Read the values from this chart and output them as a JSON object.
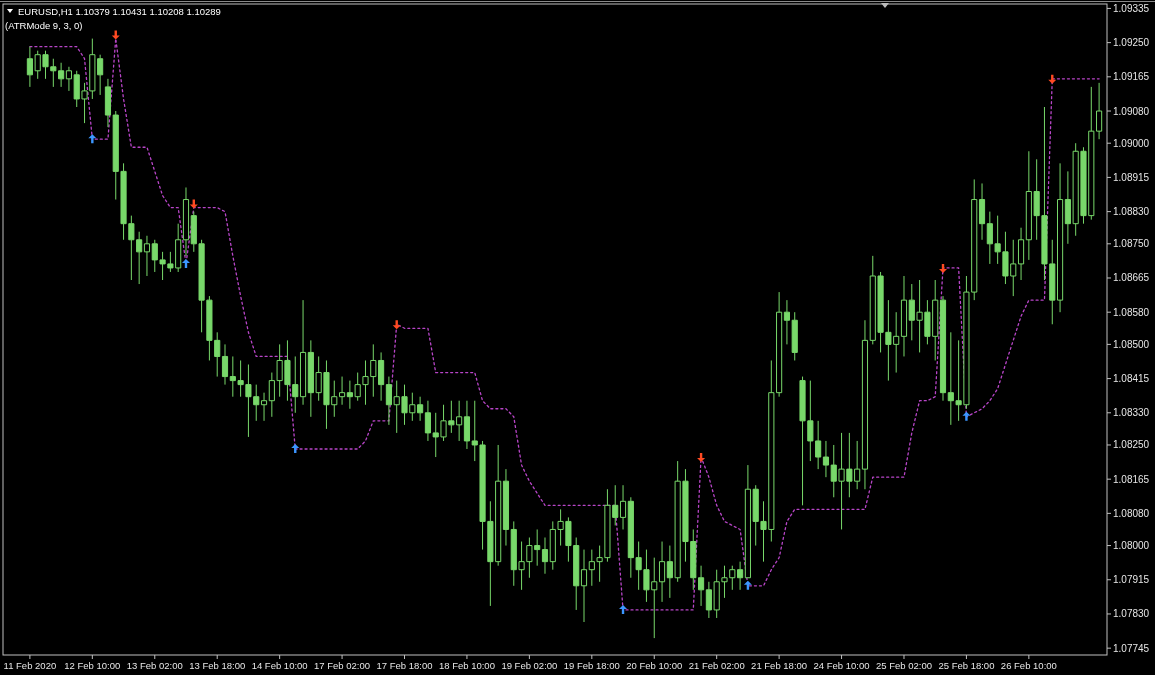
{
  "chart_data": {
    "type": "candlestick",
    "title": "EURUSD,H1 1.10379 1.10431 1.10208 1.10289",
    "subtitle": "(ATRMode 9, 3, 0)",
    "color": "#78d86a",
    "categories": [
      "11 Feb 2020",
      null,
      null,
      null,
      null,
      null,
      null,
      null,
      "12 Feb 10:00",
      null,
      null,
      null,
      null,
      null,
      null,
      null,
      "13 Feb 02:00",
      null,
      null,
      null,
      null,
      null,
      null,
      null,
      "13 Feb 18:00",
      null,
      null,
      null,
      null,
      null,
      null,
      null,
      "14 Feb 10:00",
      null,
      null,
      null,
      null,
      null,
      null,
      null,
      "17 Feb 02:00",
      null,
      null,
      null,
      null,
      null,
      null,
      null,
      "17 Feb 18:00",
      null,
      null,
      null,
      null,
      null,
      null,
      null,
      "18 Feb 10:00",
      null,
      null,
      null,
      null,
      null,
      null,
      null,
      "19 Feb 02:00",
      null,
      null,
      null,
      null,
      null,
      null,
      null,
      "19 Feb 18:00",
      null,
      null,
      null,
      null,
      null,
      null,
      null,
      "20 Feb 10:00",
      null,
      null,
      null,
      null,
      null,
      null,
      null,
      "21 Feb 02:00",
      null,
      null,
      null,
      null,
      null,
      null,
      null,
      "21 Feb 18:00",
      null,
      null,
      null,
      null,
      null,
      null,
      null,
      "24 Feb 10:00",
      null,
      null,
      null,
      null,
      null,
      null,
      null,
      "25 Feb 02:00",
      null,
      null,
      null,
      null,
      null,
      null,
      null,
      "25 Feb 18:00",
      null,
      null,
      null,
      null,
      null,
      null,
      null,
      "26 Feb 10:00",
      null,
      null,
      null,
      null,
      null,
      null,
      null,
      null,
      null
    ],
    "ohlc": [
      [
        1.0921,
        1.0924,
        1.0914,
        1.0917
      ],
      [
        1.0918,
        1.0923,
        1.0916,
        1.0922
      ],
      [
        1.0922,
        1.0923,
        1.0916,
        1.0919
      ],
      [
        1.0919,
        1.0921,
        1.0914,
        1.0918
      ],
      [
        1.0918,
        1.092,
        1.0914,
        1.0916
      ],
      [
        1.0916,
        1.0919,
        1.0913,
        1.0918
      ],
      [
        1.0917,
        1.0918,
        1.0909,
        1.0911
      ],
      [
        1.0911,
        1.0915,
        1.0905,
        1.0913
      ],
      [
        1.0913,
        1.0926,
        1.0911,
        1.0922
      ],
      [
        1.0921,
        1.0922,
        1.0912,
        1.0917
      ],
      [
        1.0914,
        1.0916,
        1.0904,
        1.0907
      ],
      [
        1.0907,
        1.0908,
        1.0886,
        1.0893
      ],
      [
        1.0893,
        1.0895,
        1.0876,
        1.088
      ],
      [
        1.088,
        1.0882,
        1.0866,
        1.0876
      ],
      [
        1.0876,
        1.0878,
        1.0865,
        1.0873
      ],
      [
        1.0873,
        1.0877,
        1.0867,
        1.0875
      ],
      [
        1.0875,
        1.0876,
        1.0868,
        1.0871
      ],
      [
        1.0871,
        1.0873,
        1.0866,
        1.087
      ],
      [
        1.087,
        1.0873,
        1.0868,
        1.0869
      ],
      [
        1.0869,
        1.088,
        1.0868,
        1.0876
      ],
      [
        1.0876,
        1.0889,
        1.0872,
        1.0886
      ],
      [
        1.0882,
        1.0883,
        1.0873,
        1.0875
      ],
      [
        1.0875,
        1.0876,
        1.0853,
        1.0861
      ],
      [
        1.0861,
        1.0862,
        1.0846,
        1.0851
      ],
      [
        1.0851,
        1.0853,
        1.0842,
        1.0847
      ],
      [
        1.0847,
        1.085,
        1.084,
        1.0842
      ],
      [
        1.0842,
        1.0847,
        1.0837,
        1.0841
      ],
      [
        1.0841,
        1.0846,
        1.0837,
        1.084
      ],
      [
        1.084,
        1.0845,
        1.0827,
        1.0837
      ],
      [
        1.0837,
        1.084,
        1.0831,
        1.0835
      ],
      [
        1.0835,
        1.0838,
        1.0831,
        1.0836
      ],
      [
        1.0836,
        1.0843,
        1.0832,
        1.0841
      ],
      [
        1.0841,
        1.085,
        1.0837,
        1.0846
      ],
      [
        1.0846,
        1.0851,
        1.0836,
        1.084
      ],
      [
        1.084,
        1.0847,
        1.0833,
        1.0837
      ],
      [
        1.0837,
        1.0861,
        1.0835,
        1.0848
      ],
      [
        1.0848,
        1.0851,
        1.0832,
        1.0838
      ],
      [
        1.0838,
        1.0847,
        1.0836,
        1.0843
      ],
      [
        1.0843,
        1.0846,
        1.0829,
        1.0835
      ],
      [
        1.0835,
        1.0841,
        1.0832,
        1.0837
      ],
      [
        1.0837,
        1.0842,
        1.0835,
        1.0838
      ],
      [
        1.0838,
        1.0841,
        1.0834,
        1.0837
      ],
      [
        1.0837,
        1.0843,
        1.0836,
        1.084
      ],
      [
        1.084,
        1.0846,
        1.0835,
        1.0842
      ],
      [
        1.0842,
        1.085,
        1.0837,
        1.0846
      ],
      [
        1.0846,
        1.0848,
        1.0836,
        1.084
      ],
      [
        1.084,
        1.0842,
        1.083,
        1.0835
      ],
      [
        1.0835,
        1.0841,
        1.0828,
        1.0837
      ],
      [
        1.0837,
        1.084,
        1.083,
        1.0833
      ],
      [
        1.0833,
        1.0838,
        1.0831,
        1.0835
      ],
      [
        1.0835,
        1.0837,
        1.0831,
        1.0833
      ],
      [
        1.0833,
        1.0836,
        1.0826,
        1.0828
      ],
      [
        1.0828,
        1.0833,
        1.0822,
        1.0827
      ],
      [
        1.0827,
        1.0835,
        1.0826,
        1.0831
      ],
      [
        1.0831,
        1.0836,
        1.0828,
        1.083
      ],
      [
        1.083,
        1.0836,
        1.0826,
        1.0832
      ],
      [
        1.0832,
        1.0836,
        1.0824,
        1.0826
      ],
      [
        1.0826,
        1.0836,
        1.0821,
        1.0825
      ],
      [
        1.0825,
        1.0826,
        1.0799,
        1.0806
      ],
      [
        1.0806,
        1.0811,
        1.0785,
        1.0796
      ],
      [
        1.0796,
        1.0825,
        1.0795,
        1.0816
      ],
      [
        1.0816,
        1.0819,
        1.08,
        1.0804
      ],
      [
        1.0804,
        1.0806,
        1.079,
        1.0794
      ],
      [
        1.0794,
        1.0801,
        1.0789,
        1.0796
      ],
      [
        1.0796,
        1.0802,
        1.0792,
        1.08
      ],
      [
        1.08,
        1.0804,
        1.0795,
        1.0799
      ],
      [
        1.0799,
        1.0802,
        1.0793,
        1.0796
      ],
      [
        1.0796,
        1.0806,
        1.0794,
        1.0804
      ],
      [
        1.0804,
        1.0809,
        1.08,
        1.0806
      ],
      [
        1.0806,
        1.0807,
        1.0796,
        1.08
      ],
      [
        1.08,
        1.0802,
        1.0784,
        1.079
      ],
      [
        1.079,
        1.0799,
        1.0781,
        1.0794
      ],
      [
        1.0794,
        1.0799,
        1.079,
        1.0796
      ],
      [
        1.0796,
        1.08,
        1.0791,
        1.0797
      ],
      [
        1.0797,
        1.0814,
        1.0796,
        1.081
      ],
      [
        1.081,
        1.0815,
        1.0805,
        1.0807
      ],
      [
        1.0807,
        1.0815,
        1.0804,
        1.0811
      ],
      [
        1.0811,
        1.0812,
        1.0792,
        1.0797
      ],
      [
        1.0797,
        1.0801,
        1.0789,
        1.0794
      ],
      [
        1.0794,
        1.0799,
        1.0786,
        1.0789
      ],
      [
        1.0789,
        1.0797,
        1.0777,
        1.0791
      ],
      [
        1.0791,
        1.0801,
        1.0786,
        1.0796
      ],
      [
        1.0796,
        1.08,
        1.0787,
        1.0792
      ],
      [
        1.0792,
        1.0821,
        1.0791,
        1.0816
      ],
      [
        1.0816,
        1.0819,
        1.0796,
        1.0801
      ],
      [
        1.0801,
        1.0804,
        1.0789,
        1.0792
      ],
      [
        1.0792,
        1.0795,
        1.0785,
        1.0789
      ],
      [
        1.0789,
        1.0791,
        1.0782,
        1.0784
      ],
      [
        1.0784,
        1.0794,
        1.0782,
        1.0791
      ],
      [
        1.0791,
        1.0795,
        1.0787,
        1.0792
      ],
      [
        1.0792,
        1.0795,
        1.0789,
        1.0794
      ],
      [
        1.0794,
        1.0796,
        1.0789,
        1.0792
      ],
      [
        1.0792,
        1.082,
        1.0792,
        1.0814
      ],
      [
        1.0814,
        1.0815,
        1.08,
        1.0806
      ],
      [
        1.0806,
        1.0811,
        1.0796,
        1.0804
      ],
      [
        1.0804,
        1.0846,
        1.0801,
        1.0838
      ],
      [
        1.0838,
        1.0863,
        1.0837,
        1.0858
      ],
      [
        1.0858,
        1.0861,
        1.085,
        1.0856
      ],
      [
        1.0856,
        1.0858,
        1.0846,
        1.0848
      ],
      [
        1.0841,
        1.0842,
        1.081,
        1.0831
      ],
      [
        1.0831,
        1.0841,
        1.0821,
        1.0826
      ],
      [
        1.0826,
        1.0831,
        1.0819,
        1.0822
      ],
      [
        1.0822,
        1.0826,
        1.0817,
        1.082
      ],
      [
        1.082,
        1.0825,
        1.0812,
        1.0816
      ],
      [
        1.0816,
        1.0828,
        1.0804,
        1.0819
      ],
      [
        1.0819,
        1.0828,
        1.0812,
        1.0816
      ],
      [
        1.0816,
        1.0826,
        1.0814,
        1.0819
      ],
      [
        1.0819,
        1.0856,
        1.0814,
        1.0851
      ],
      [
        1.0851,
        1.0872,
        1.085,
        1.0867
      ],
      [
        1.0867,
        1.0868,
        1.0848,
        1.0853
      ],
      [
        1.0853,
        1.0861,
        1.0841,
        1.085
      ],
      [
        1.085,
        1.0858,
        1.0843,
        1.0852
      ],
      [
        1.0852,
        1.0867,
        1.0847,
        1.0861
      ],
      [
        1.0861,
        1.0865,
        1.0851,
        1.0856
      ],
      [
        1.0856,
        1.0866,
        1.0848,
        1.0858
      ],
      [
        1.0858,
        1.0861,
        1.085,
        1.0852
      ],
      [
        1.0852,
        1.0866,
        1.0846,
        1.0861
      ],
      [
        1.0861,
        1.0862,
        1.0836,
        1.0838
      ],
      [
        1.0838,
        1.0853,
        1.083,
        1.0836
      ],
      [
        1.0836,
        1.0851,
        1.0831,
        1.0835
      ],
      [
        1.0835,
        1.0867,
        1.0834,
        1.0863
      ],
      [
        1.0863,
        1.0891,
        1.0861,
        1.0886
      ],
      [
        1.0886,
        1.089,
        1.0876,
        1.088
      ],
      [
        1.088,
        1.0883,
        1.087,
        1.0875
      ],
      [
        1.0875,
        1.0882,
        1.087,
        1.0873
      ],
      [
        1.0873,
        1.0878,
        1.0865,
        1.0867
      ],
      [
        1.0867,
        1.0876,
        1.0862,
        1.087
      ],
      [
        1.087,
        1.0879,
        1.0866,
        1.0876
      ],
      [
        1.0876,
        1.0898,
        1.0871,
        1.0888
      ],
      [
        1.0888,
        1.0896,
        1.0876,
        1.0882
      ],
      [
        1.0882,
        1.0909,
        1.0866,
        1.087
      ],
      [
        1.087,
        1.0876,
        1.0855,
        1.0861
      ],
      [
        1.0861,
        1.0895,
        1.0858,
        1.0886
      ],
      [
        1.0886,
        1.0893,
        1.0875,
        1.088
      ],
      [
        1.088,
        1.09,
        1.0877,
        1.0898
      ],
      [
        1.0898,
        1.0899,
        1.088,
        1.0882
      ],
      [
        1.0882,
        1.0914,
        1.0881,
        1.0903
      ],
      [
        1.0903,
        1.0915,
        1.0901,
        1.0908
      ]
    ],
    "series": [
      {
        "type": "line",
        "color": "#b845c8",
        "line_style": "dotted",
        "values": [
          1.0924,
          1.0924,
          1.0924,
          1.0924,
          1.0924,
          1.0924,
          1.0924,
          1.0921,
          1.0901,
          1.0901,
          1.0901,
          1.0926,
          1.0911,
          1.0899,
          1.0899,
          1.0899,
          1.0893,
          1.0887,
          1.0884,
          1.0884,
          1.087,
          1.0884,
          1.0884,
          1.0884,
          1.0884,
          1.0883,
          1.0872,
          1.0862,
          1.0853,
          1.0847,
          1.0847,
          1.0847,
          1.0847,
          1.0847,
          1.0824,
          1.0824,
          1.0824,
          1.0824,
          1.0824,
          1.0824,
          1.0824,
          1.0824,
          1.0824,
          1.0826,
          1.0831,
          1.0831,
          1.0831,
          1.0855,
          1.0854,
          1.0854,
          1.0854,
          1.0854,
          1.0843,
          1.0843,
          1.0843,
          1.0843,
          1.0843,
          1.0843,
          1.0836,
          1.0834,
          1.0834,
          1.0834,
          1.0832,
          1.082,
          1.0816,
          1.0813,
          1.081,
          1.081,
          1.081,
          1.081,
          1.081,
          1.081,
          1.081,
          1.081,
          1.081,
          1.081,
          1.0784,
          1.0784,
          1.0784,
          1.0784,
          1.0784,
          1.0784,
          1.0784,
          1.0784,
          1.0784,
          1.0784,
          1.0822,
          1.0817,
          1.081,
          1.0806,
          1.0805,
          1.0804,
          1.079,
          1.079,
          1.079,
          1.0794,
          1.0797,
          1.0806,
          1.0809,
          1.0809,
          1.0809,
          1.0809,
          1.0809,
          1.0809,
          1.0809,
          1.0809,
          1.0809,
          1.0809,
          1.0817,
          1.0817,
          1.0817,
          1.0817,
          1.0817,
          1.0828,
          1.0836,
          1.0836,
          1.0837,
          1.0869,
          1.0869,
          1.0869,
          1.0832,
          1.0833,
          1.0834,
          1.0836,
          1.0839,
          1.0845,
          1.0851,
          1.0857,
          1.0861,
          1.0861,
          1.0861,
          1.0916,
          1.0916,
          1.0916,
          1.0916,
          1.0916,
          1.0916,
          1.0916
        ]
      },
      {
        "type": "scatter",
        "color": "#3c96ff",
        "marker": "triangle",
        "values": [
          null,
          null,
          null,
          null,
          null,
          null,
          null,
          null,
          1.0901,
          null,
          null,
          null,
          null,
          null,
          null,
          null,
          null,
          null,
          null,
          null,
          1.087,
          null,
          null,
          null,
          null,
          null,
          null,
          null,
          null,
          null,
          null,
          null,
          null,
          null,
          1.0824,
          null,
          null,
          null,
          null,
          null,
          null,
          null,
          null,
          null,
          null,
          null,
          null,
          null,
          null,
          null,
          null,
          null,
          null,
          null,
          null,
          null,
          null,
          null,
          null,
          null,
          null,
          null,
          null,
          null,
          null,
          null,
          null,
          null,
          null,
          null,
          null,
          null,
          null,
          null,
          null,
          null,
          1.0784,
          null,
          null,
          null,
          null,
          null,
          null,
          null,
          null,
          null,
          null,
          null,
          null,
          null,
          null,
          null,
          1.079,
          null,
          null,
          null,
          null,
          null,
          null,
          null,
          null,
          null,
          null,
          null,
          null,
          null,
          null,
          null,
          null,
          null,
          null,
          null,
          null,
          null,
          null,
          null,
          null,
          null,
          null,
          null,
          1.0832,
          null,
          null,
          null,
          null,
          null,
          null,
          null,
          null,
          null,
          null,
          null,
          null,
          null,
          null,
          null,
          null,
          null
        ]
      },
      {
        "type": "scatter",
        "color": "#ff4a22",
        "marker": "triangle",
        "values": [
          null,
          null,
          null,
          null,
          null,
          null,
          null,
          null,
          null,
          null,
          null,
          1.0927,
          null,
          null,
          null,
          null,
          null,
          null,
          null,
          null,
          null,
          1.0885,
          null,
          null,
          null,
          null,
          null,
          null,
          null,
          null,
          null,
          null,
          null,
          null,
          null,
          null,
          null,
          null,
          null,
          null,
          null,
          null,
          null,
          null,
          null,
          null,
          null,
          1.0855,
          null,
          null,
          null,
          null,
          null,
          null,
          null,
          null,
          null,
          null,
          null,
          null,
          null,
          null,
          null,
          null,
          null,
          null,
          null,
          null,
          null,
          null,
          null,
          null,
          null,
          null,
          null,
          null,
          null,
          null,
          null,
          null,
          null,
          null,
          null,
          null,
          null,
          null,
          1.0822,
          null,
          null,
          null,
          null,
          null,
          null,
          null,
          null,
          null,
          null,
          null,
          null,
          null,
          null,
          null,
          null,
          null,
          null,
          null,
          null,
          null,
          null,
          null,
          null,
          null,
          null,
          null,
          null,
          null,
          null,
          1.0869,
          null,
          null,
          null,
          null,
          null,
          null,
          null,
          null,
          null,
          null,
          null,
          null,
          null,
          1.0916,
          null,
          null,
          null,
          null,
          null,
          null
        ]
      }
    ],
    "ylim": [
      1.07728,
      1.09346
    ],
    "yticks": [
      1.09335,
      {
        "value": 1.0925,
        "label": "1.09250"
      },
      1.09165,
      {
        "value": 1.0908,
        "label": "1.09080"
      },
      {
        "value": 1.09,
        "label": "1.09000"
      },
      1.08915,
      {
        "value": 1.0883,
        "label": "1.08830"
      },
      {
        "value": 1.0875,
        "label": "1.08750"
      },
      1.08665,
      {
        "value": 1.0858,
        "label": "1.08580"
      },
      {
        "value": 1.085,
        "label": "1.08500"
      },
      1.08415,
      {
        "value": 1.0833,
        "label": "1.08330"
      },
      {
        "value": 1.0825,
        "label": "1.08250"
      },
      1.08165,
      {
        "value": 1.0808,
        "label": "1.08080"
      },
      {
        "value": 1.08,
        "label": "1.08000"
      },
      1.07915,
      {
        "value": 1.0783,
        "label": "1.07830"
      },
      1.07745
    ]
  }
}
